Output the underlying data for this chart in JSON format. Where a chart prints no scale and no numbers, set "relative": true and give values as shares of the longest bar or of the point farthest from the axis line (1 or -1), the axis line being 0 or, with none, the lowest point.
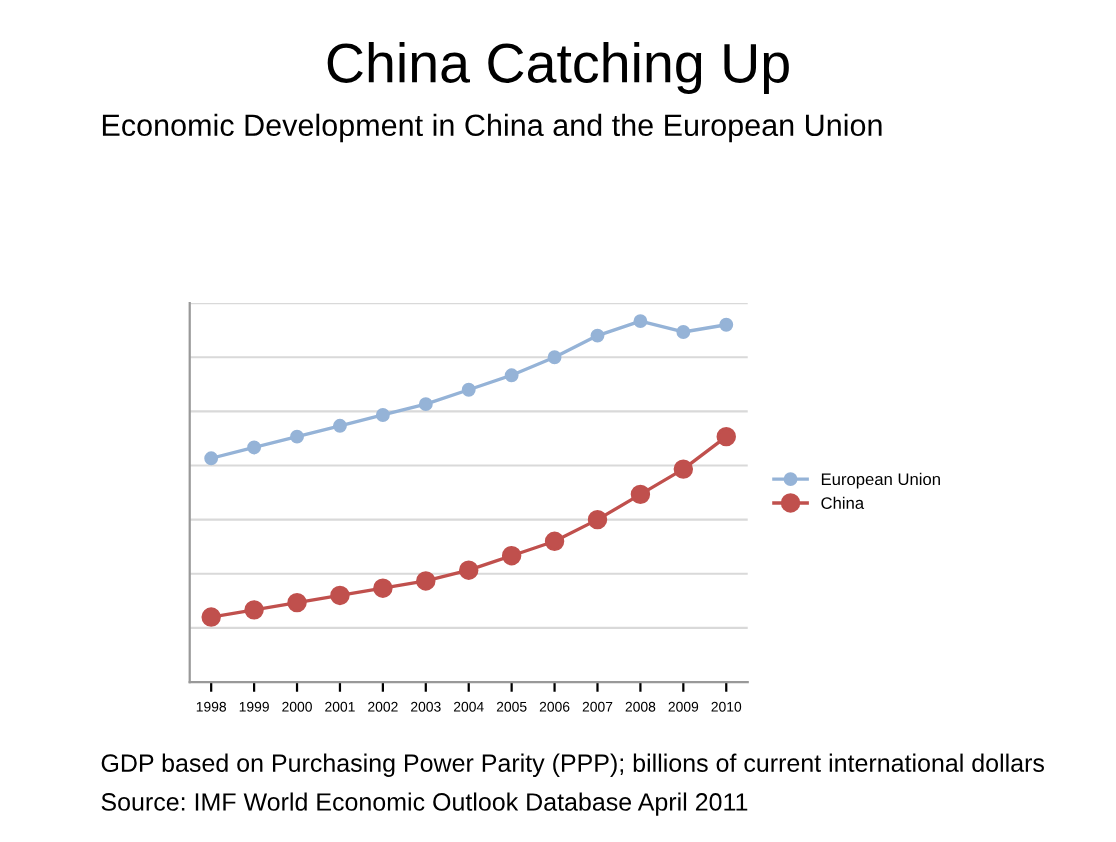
{
  "chart_data": {
    "type": "line",
    "title": "China Catching Up",
    "subtitle": "Economic Development in China and the European Union",
    "categories": [
      "1998",
      "1999",
      "2000",
      "2001",
      "2002",
      "2003",
      "2004",
      "2005",
      "2006",
      "2007",
      "2008",
      "2009",
      "2010"
    ],
    "relative": true,
    "grid": "y",
    "legend": "right",
    "marker": "circle",
    "series": [
      {
        "name": "European Union",
        "color": "#95b3d7",
        "values": [
          0.62,
          0.65,
          0.68,
          0.71,
          0.74,
          0.77,
          0.81,
          0.85,
          0.9,
          0.96,
          1.0,
          0.97,
          0.99
        ]
      },
      {
        "name": "China",
        "color": "#c0504d",
        "values": [
          0.18,
          0.2,
          0.22,
          0.24,
          0.26,
          0.28,
          0.31,
          0.35,
          0.39,
          0.45,
          0.52,
          0.59,
          0.68
        ]
      }
    ],
    "annotations": [
      "GDP based on Purchasing Power Parity (PPP); billions of current international dollars",
      "Source: IMF World Economic Outlook Database April 2011"
    ]
  }
}
